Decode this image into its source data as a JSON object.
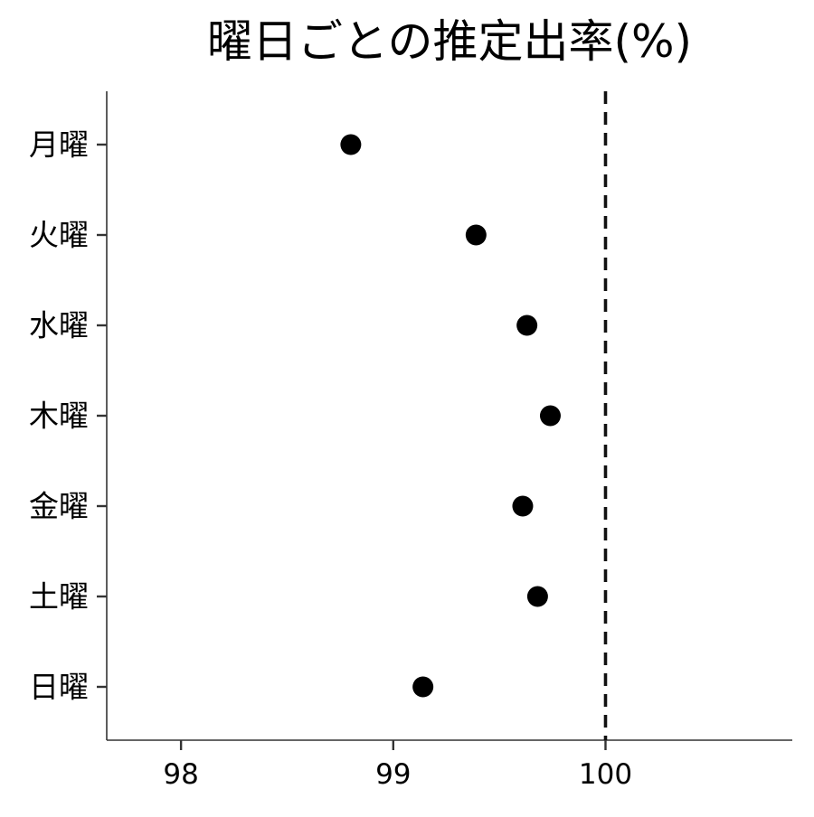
{
  "chart_data": {
    "type": "scatter",
    "title": "曜日ごとの推定出率(%)",
    "xlabel": "",
    "ylabel": "",
    "categories": [
      "月曜",
      "火曜",
      "水曜",
      "木曜",
      "金曜",
      "土曜",
      "日曜"
    ],
    "series": [
      {
        "values": [
          98.8,
          99.39,
          99.63,
          99.74,
          99.61,
          99.68,
          99.14
        ]
      }
    ],
    "xlim": [
      97.65,
      100.88
    ],
    "xticks": [
      98,
      99,
      100
    ],
    "reference_line": {
      "x": 100,
      "style": "dashed"
    },
    "grid": false,
    "legend": "none",
    "colors": {
      "point": "#000000",
      "axis": "#333333",
      "reference": "#111111"
    }
  }
}
